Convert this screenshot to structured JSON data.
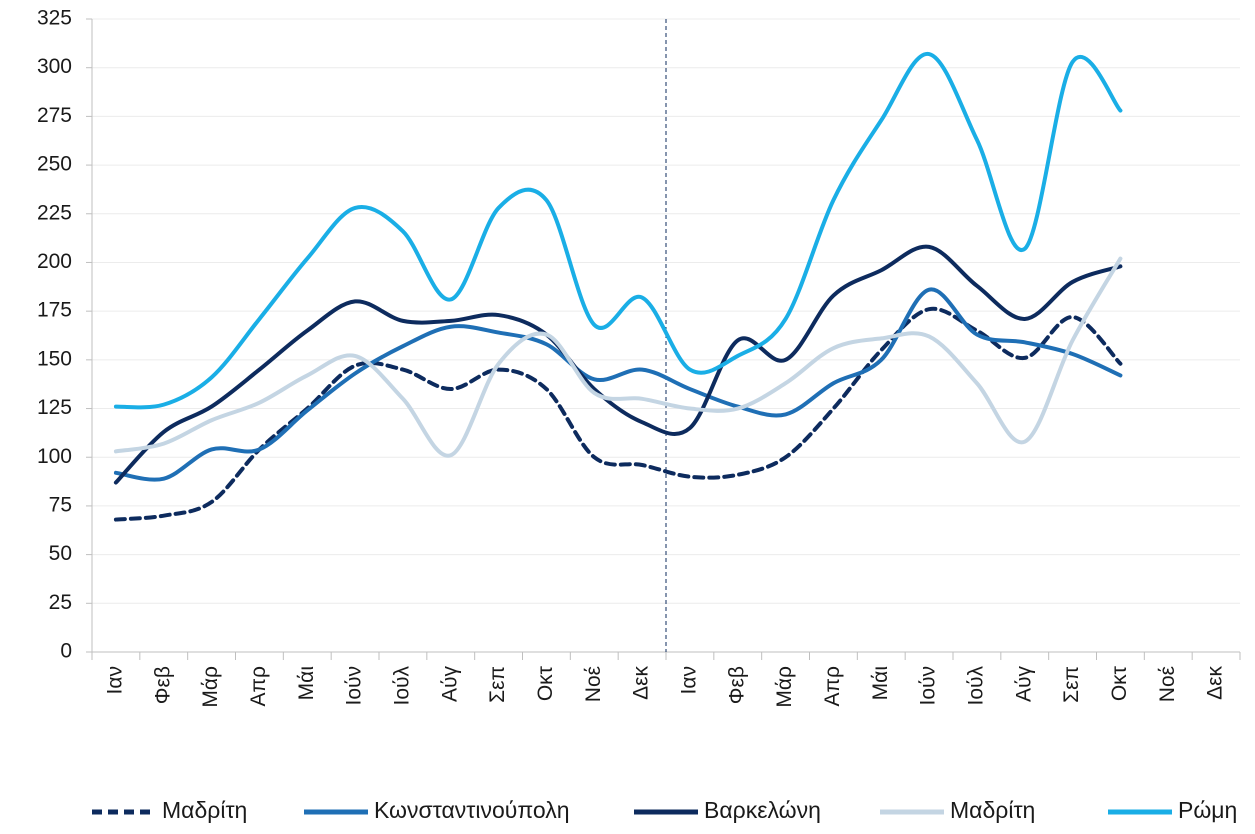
{
  "chart_data": {
    "type": "line",
    "categories": [
      "Ιαν",
      "Φεβ",
      "Μάρ",
      "Απρ",
      "Μάι",
      "Ιούν",
      "Ιούλ",
      "Αύγ",
      "Σεπ",
      "Οκτ",
      "Νοέ",
      "Δεκ",
      "Ιαν",
      "Φεβ",
      "Μάρ",
      "Απρ",
      "Μάι",
      "Ιούν",
      "Ιούλ",
      "Αύγ",
      "Σεπ",
      "Οκτ",
      "Νοέ",
      "Δεκ"
    ],
    "series": [
      {
        "name": "Μαδρίτη",
        "color": "#0d2b5e",
        "line_style": "dashed",
        "values": [
          68,
          70,
          77,
          104,
          125,
          147,
          145,
          135,
          145,
          135,
          100,
          96,
          90,
          91,
          100,
          125,
          155,
          176,
          165,
          151,
          172,
          148,
          null,
          null
        ]
      },
      {
        "name": "Κωνσταντινούπολη",
        "color": "#1f6fb5",
        "values": [
          92,
          89,
          104,
          104,
          124,
          143,
          157,
          167,
          164,
          158,
          140,
          145,
          135,
          126,
          122,
          138,
          150,
          186,
          163,
          159,
          153,
          142,
          null,
          null
        ]
      },
      {
        "name": "Βαρκελώνη",
        "color": "#0d2b5e",
        "values": [
          87,
          113,
          126,
          145,
          165,
          180,
          170,
          170,
          173,
          163,
          135,
          118,
          115,
          160,
          150,
          183,
          196,
          208,
          188,
          171,
          190,
          198,
          null,
          null
        ]
      },
      {
        "name": "Μαδρίτη",
        "color": "#c4d5e3",
        "values": [
          103,
          107,
          119,
          128,
          142,
          152,
          130,
          101,
          148,
          163,
          133,
          130,
          125,
          125,
          138,
          156,
          161,
          162,
          138,
          108,
          160,
          202,
          null,
          null
        ]
      },
      {
        "name": "Ρώμη",
        "color": "#1aaee6",
        "values": [
          126,
          127,
          141,
          171,
          202,
          228,
          216,
          181,
          228,
          232,
          168,
          182,
          145,
          152,
          171,
          232,
          273,
          307,
          263,
          207,
          303,
          278,
          null,
          null
        ]
      }
    ],
    "ylim": [
      0,
      325
    ],
    "yticks": [
      0,
      25,
      50,
      75,
      100,
      125,
      150,
      175,
      200,
      225,
      250,
      275,
      300,
      325
    ],
    "grid": true
  }
}
